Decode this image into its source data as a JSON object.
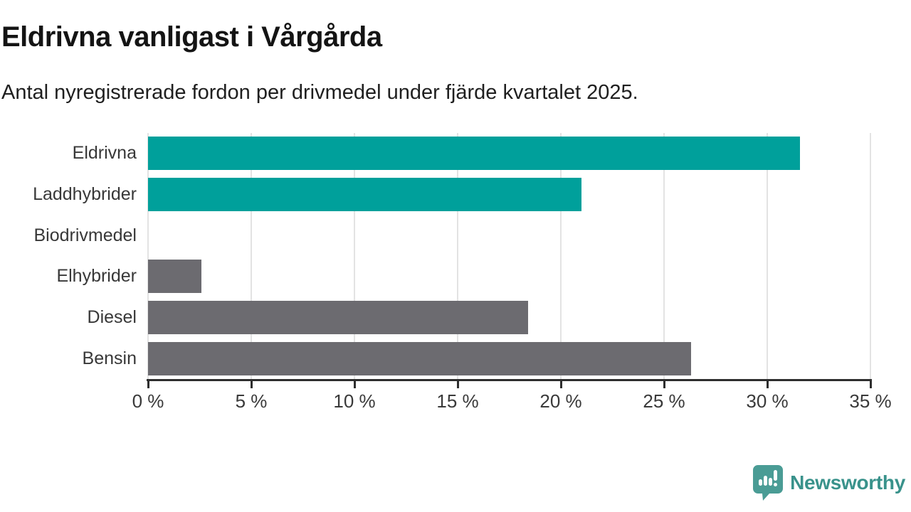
{
  "title": "Eldrivna vanligast i Vårgårda",
  "subtitle": "Antal nyregistrerade fordon per drivmedel under fjärde kvartalet 2025.",
  "footer": {
    "brand": "Newsworthy"
  },
  "colors": {
    "accent_teal": "#00A09B",
    "neutral_gray": "#6C6B70",
    "axis": "#2e2e2e",
    "gridline": "#e3e3e3",
    "logo_icon": "#4A9C95",
    "logo_text": "#39928b"
  },
  "chart_data": {
    "type": "bar",
    "orientation": "horizontal",
    "title": "Eldrivna vanligast i Vårgårda",
    "subtitle": "Antal nyregistrerade fordon per drivmedel under fjärde kvartalet 2025.",
    "categories": [
      "Eldrivna",
      "Laddhybrider",
      "Biodrivmedel",
      "Elhybrider",
      "Diesel",
      "Bensin"
    ],
    "values": [
      31.6,
      21.0,
      0,
      2.6,
      18.4,
      26.3
    ],
    "bar_colors": [
      "#00A09B",
      "#00A09B",
      "#6C6B70",
      "#6C6B70",
      "#6C6B70",
      "#6C6B70"
    ],
    "unit": "%",
    "xlim": [
      0,
      35
    ],
    "xticks": [
      0,
      5,
      10,
      15,
      20,
      25,
      30,
      35
    ],
    "xtick_labels": [
      "0 %",
      "5 %",
      "10 %",
      "15 %",
      "20 %",
      "25 %",
      "30 %",
      "35 %"
    ],
    "grid": true,
    "legend": false
  }
}
